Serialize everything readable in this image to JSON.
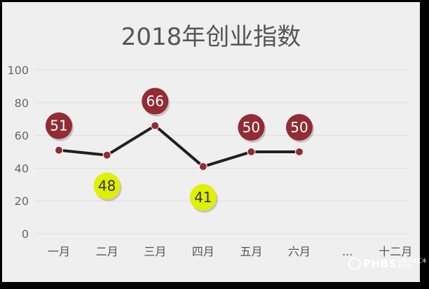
{
  "chart_data": {
    "type": "line",
    "title": "2018年创业指数",
    "categories": [
      "一月",
      "二月",
      "三月",
      "四月",
      "五月",
      "六月",
      "...",
      "十二月"
    ],
    "series": [
      {
        "values": [
          51,
          48,
          66,
          41,
          50,
          50,
          null,
          null
        ]
      }
    ],
    "data_labels": [
      "51",
      "48",
      "66",
      "41",
      "50",
      "50"
    ],
    "yticks": [
      "0",
      "20",
      "40",
      "60",
      "80",
      "100"
    ],
    "ylim": [
      0,
      100
    ],
    "grid": true,
    "colors": {
      "line": "#1f1f1f",
      "point": "#922b33",
      "label_above": "#922b33",
      "label_below": "#dff000",
      "label_above_text": "#ffffff",
      "label_below_text": "#333333",
      "background": "#efefef"
    }
  },
  "logo": {
    "text": "PHBS",
    "subtext": "北京大学汇丰商学院"
  }
}
